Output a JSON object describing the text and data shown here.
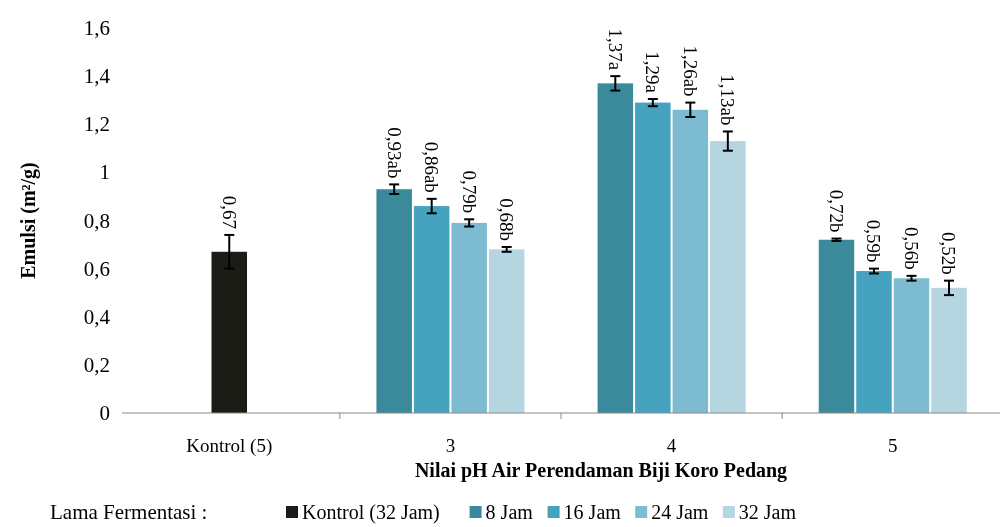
{
  "chart_data": {
    "type": "bar",
    "xlabel": "Nilai pH Air Perendaman Biji Koro Pedang",
    "ylabel": "Emulsi (m²/g)",
    "legend_title": "Lama Fermentasi :",
    "legend": "bottom",
    "categories": [
      "Kontrol (5)",
      "3",
      "4",
      "5"
    ],
    "ylim": [
      0,
      1.6
    ],
    "yticks": [
      {
        "value": 0,
        "label": "0"
      },
      {
        "value": 0.2,
        "label": "0,2"
      },
      {
        "value": 0.4,
        "label": "0,4"
      },
      {
        "value": 0.6,
        "label": "0,6"
      },
      {
        "value": 0.8,
        "label": "0,8"
      },
      {
        "value": 1,
        "label": "1"
      },
      {
        "value": 1.2,
        "label": "1,2"
      },
      {
        "value": 1.4,
        "label": "1,4"
      },
      {
        "value": 1.6,
        "label": "1,6"
      }
    ],
    "series": [
      {
        "name": "Kontrol (32 Jam)",
        "color": "#1c1c16",
        "values": [
          0.67,
          null,
          null,
          null
        ],
        "errors": [
          0.07,
          null,
          null,
          null
        ],
        "value_labels": [
          "0,67",
          null,
          null,
          null
        ]
      },
      {
        "name": "8 Jam",
        "color": "#3a8a9c",
        "values": [
          null,
          0.93,
          1.37,
          0.72
        ],
        "errors": [
          null,
          0.02,
          0.03,
          0.005
        ],
        "value_labels": [
          null,
          "0,93ab",
          "1,37a",
          "0,72b"
        ]
      },
      {
        "name": "16 Jam",
        "color": "#46a3bf",
        "values": [
          null,
          0.86,
          1.29,
          0.59
        ],
        "errors": [
          null,
          0.03,
          0.015,
          0.01
        ],
        "value_labels": [
          null,
          "0,86ab",
          "1,29a",
          "0,59b"
        ]
      },
      {
        "name": "24 Jam",
        "color": "#7dbcd0",
        "values": [
          null,
          0.79,
          1.26,
          0.56
        ],
        "errors": [
          null,
          0.015,
          0.03,
          0.01
        ],
        "value_labels": [
          null,
          "0,79b",
          "1,26ab",
          "0,56b"
        ]
      },
      {
        "name": "32 Jam",
        "color": "#b5d5e0",
        "values": [
          null,
          0.68,
          1.13,
          0.52
        ],
        "errors": [
          null,
          0.01,
          0.04,
          0.03
        ],
        "value_labels": [
          null,
          "0,68b",
          "1,13ab",
          "0,52b"
        ]
      }
    ]
  }
}
